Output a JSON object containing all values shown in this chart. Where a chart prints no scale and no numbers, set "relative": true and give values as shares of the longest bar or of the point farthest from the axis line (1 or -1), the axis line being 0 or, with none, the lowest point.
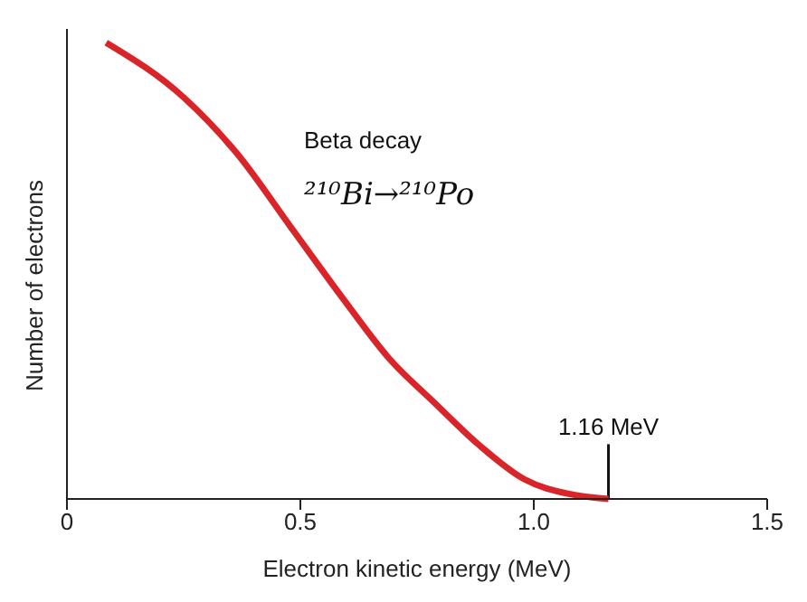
{
  "chart_data": {
    "type": "line",
    "relative": true,
    "xlabel": "Electron kinetic energy (MeV)",
    "ylabel": "Number of electrons",
    "x": [
      0.084,
      0.25,
      0.365,
      0.48,
      0.595,
      0.69,
      0.787,
      0.883,
      0.98,
      1.075,
      1.16
    ],
    "series": [
      {
        "color": "#d9252a",
        "values": [
          1,
          0.88,
          0.756,
          0.595,
          0.434,
          0.308,
          0.211,
          0.118,
          0.043,
          0.011,
          0
        ]
      }
    ],
    "xlim": [
      0,
      1.5
    ],
    "xticks": [
      0,
      0.5,
      {
        "value": 1,
        "label": "1.0"
      },
      1.5
    ],
    "annotations": [
      "Beta decay",
      "²¹⁰Bi→²¹⁰Po",
      {
        "text": "1.16 MeV",
        "x": 1.16,
        "y": 0
      }
    ],
    "marker": "none",
    "line_style": "solid"
  }
}
